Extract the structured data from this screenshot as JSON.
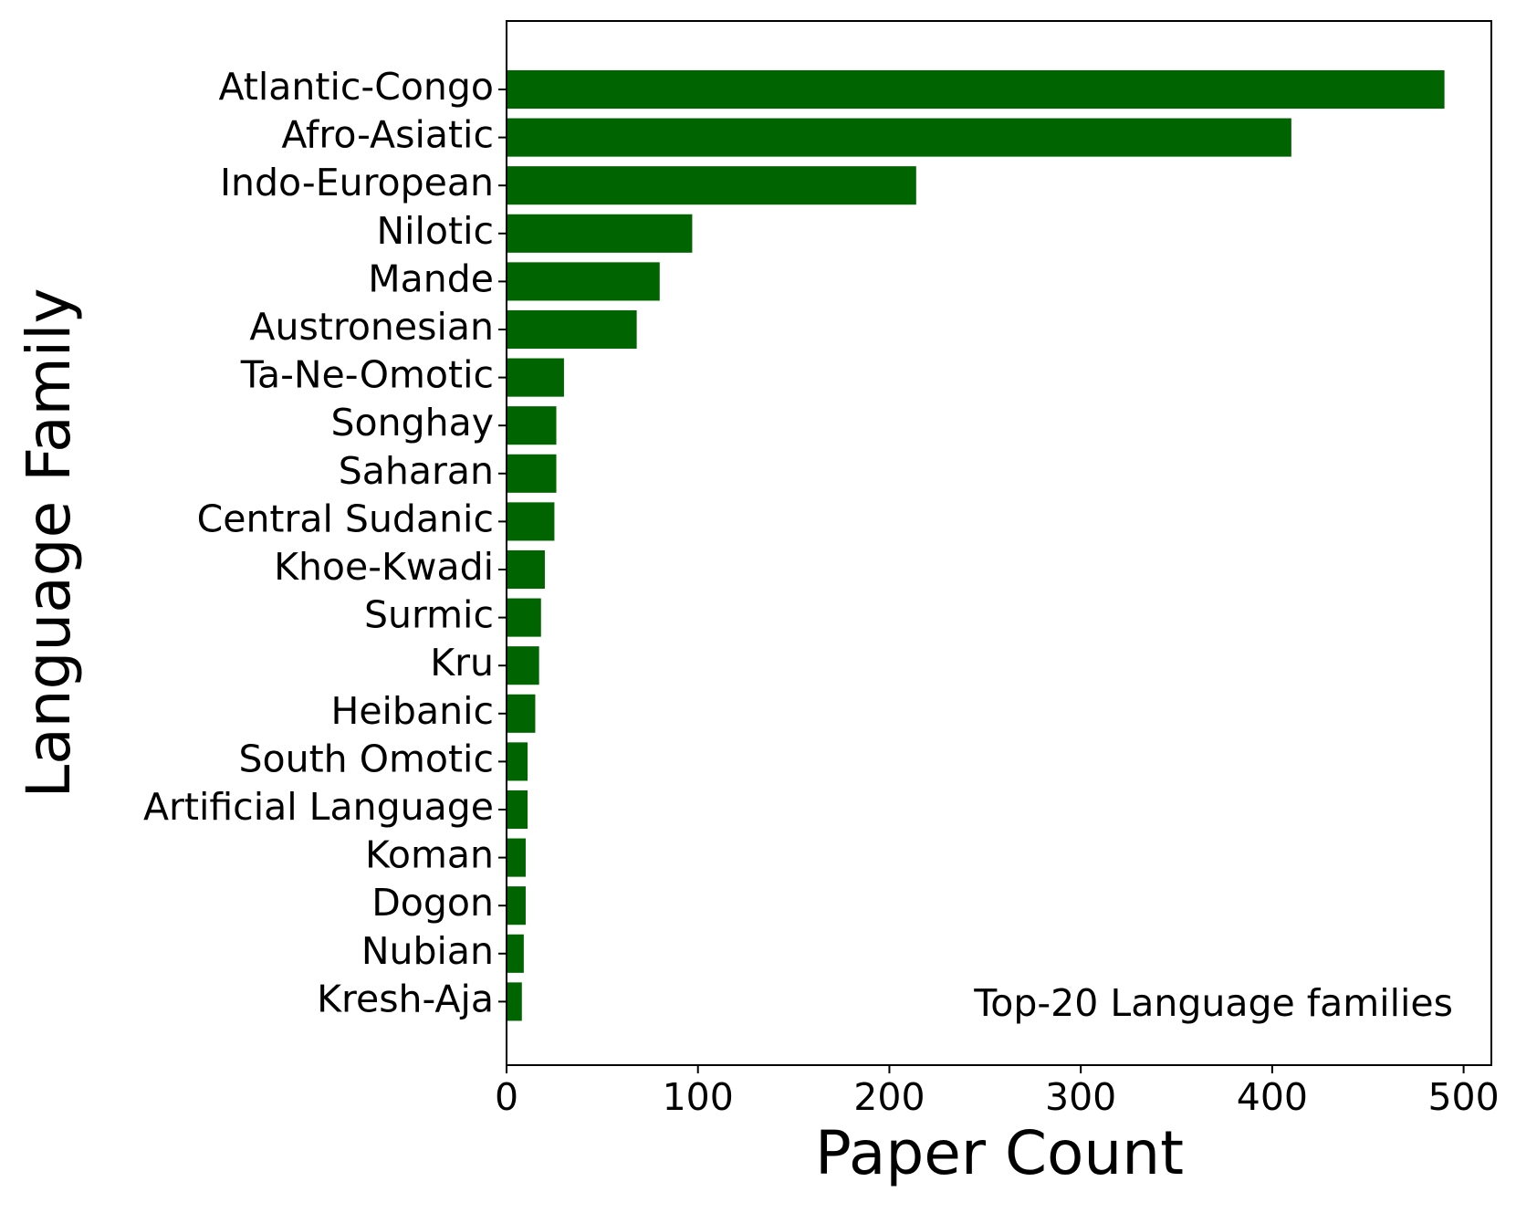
{
  "chart_data": {
    "type": "barh",
    "x_label": "Paper Count",
    "y_label": "Language Family",
    "annotation": "Top-20 Language families",
    "categories": [
      "Atlantic-Congo",
      "Afro-Asiatic",
      "Indo-European",
      "Nilotic",
      "Mande",
      "Austronesian",
      "Ta-Ne-Omotic",
      "Songhay",
      "Saharan",
      "Central Sudanic",
      "Khoe-Kwadi",
      "Surmic",
      "Kru",
      "Heibanic",
      "South Omotic",
      "Artificial Language",
      "Koman",
      "Dogon",
      "Nubian",
      "Kresh-Aja"
    ],
    "values": [
      490,
      410,
      214,
      97,
      80,
      68,
      30,
      26,
      26,
      25,
      20,
      18,
      17,
      15,
      11,
      11,
      10,
      10,
      9,
      8
    ],
    "color": "#006400",
    "xlim": [
      0,
      514.5
    ],
    "xticks": [
      0,
      100,
      200,
      300,
      400,
      500
    ]
  }
}
